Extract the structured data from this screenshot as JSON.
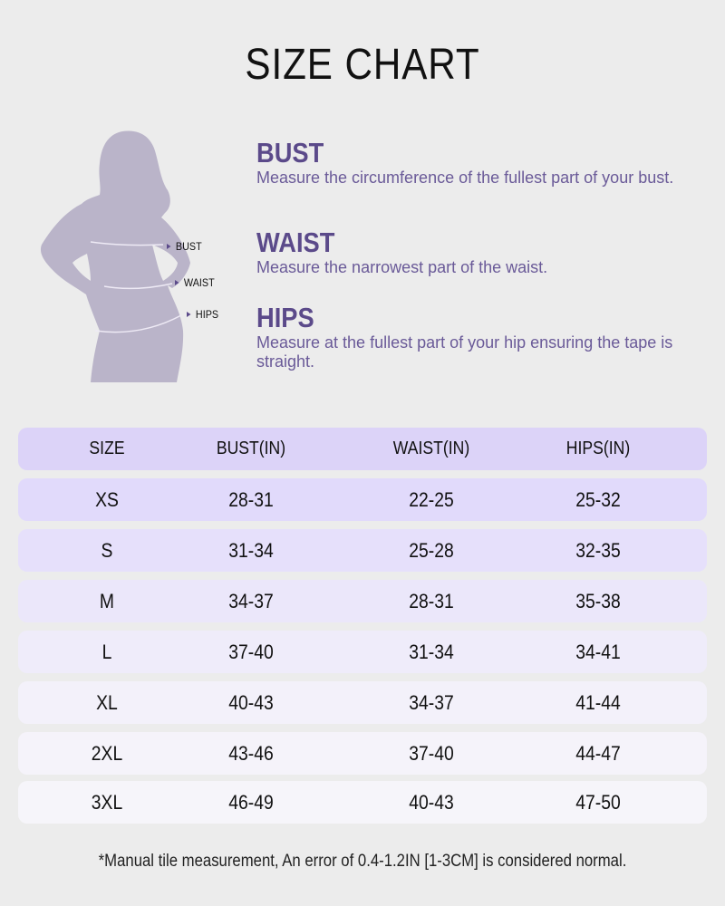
{
  "title": "SIZE CHART",
  "figure": {
    "labels": [
      "BUST",
      "WAIST",
      "HIPS"
    ],
    "silhouette_color": "#bab4c9"
  },
  "measures": [
    {
      "heading": "BUST",
      "text": "Measure the circumference of the fullest part of your bust."
    },
    {
      "heading": "WAIST",
      "text": "Measure the narrowest part of the waist."
    },
    {
      "heading": "HIPS",
      "text": "Measure at the fullest part of your hip ensuring the tape is straight."
    }
  ],
  "colors": {
    "accent": "#5b4a8a",
    "header_bg": "#dcd3f8",
    "background": "#ececec"
  },
  "table": {
    "headers": [
      "SIZE",
      "BUST(IN)",
      "WAIST(IN)",
      "HIPS(IN)"
    ],
    "rows": [
      [
        "XS",
        "28-31",
        "22-25",
        "25-32"
      ],
      [
        "S",
        "31-34",
        "25-28",
        "32-35"
      ],
      [
        "M",
        "34-37",
        "28-31",
        "35-38"
      ],
      [
        "L",
        "37-40",
        "31-34",
        "34-41"
      ],
      [
        "XL",
        "40-43",
        "34-37",
        "41-44"
      ],
      [
        "2XL",
        "43-46",
        "37-40",
        "44-47"
      ],
      [
        "3XL",
        "46-49",
        "40-43",
        "47-50"
      ]
    ]
  },
  "note": "*Manual tile measurement, An error of 0.4-1.2IN [1-3CM] is considered normal."
}
